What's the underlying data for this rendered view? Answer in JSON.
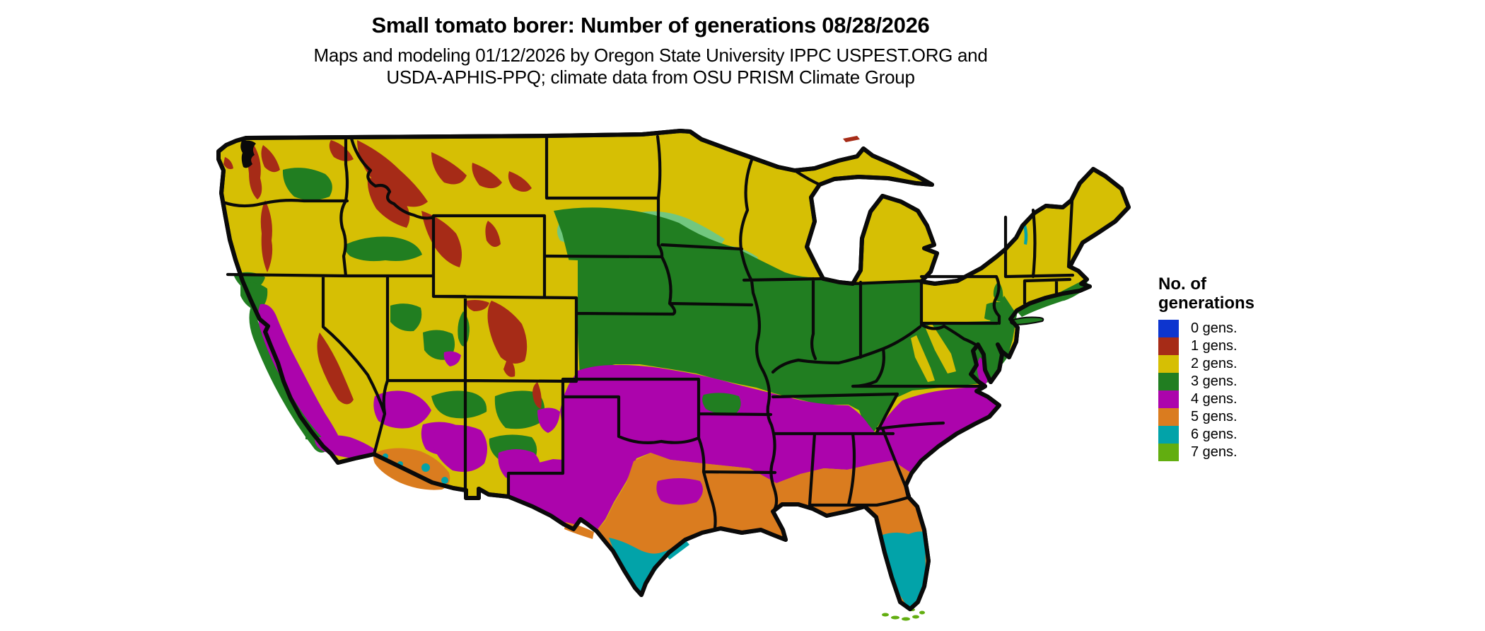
{
  "header": {
    "title": "Small tomato borer: Number of generations 08/28/2026",
    "subtitle_line1": "Maps and modeling 01/12/2026 by Oregon State University IPPC USPEST.ORG and",
    "subtitle_line2": "USDA-APHIS-PPQ; climate data from OSU PRISM Climate Group"
  },
  "legend": {
    "title_line1": "No. of",
    "title_line2": "generations",
    "items": [
      {
        "label": "0 gens.",
        "palette_key": "gens0"
      },
      {
        "label": "1 gens.",
        "palette_key": "gens1"
      },
      {
        "label": "2 gens.",
        "palette_key": "gens2"
      },
      {
        "label": "3 gens.",
        "palette_key": "gens3"
      },
      {
        "label": "4 gens.",
        "palette_key": "gens4"
      },
      {
        "label": "5 gens.",
        "palette_key": "gens5"
      },
      {
        "label": "6 gens.",
        "palette_key": "gens6"
      },
      {
        "label": "7 gens.",
        "palette_key": "gens7"
      }
    ]
  },
  "palette": {
    "gens0": "#0d35cf",
    "gens1": "#a62b17",
    "gens2": "#d6bf04",
    "gens3": "#217e21",
    "gens3_light": "#72c77f",
    "gens4": "#ac04ac",
    "gens5": "#da7c1f",
    "gens6": "#02a3a9",
    "gens7": "#62ae10",
    "border": "#0a0a0a",
    "water": "#ffffff"
  },
  "map": {
    "region": "Conterminous United States",
    "boundaries": "state borders",
    "value_classes": [
      "0 gens.",
      "1 gens.",
      "2 gens.",
      "3 gens.",
      "4 gens.",
      "5 gens.",
      "6 gens.",
      "7 gens."
    ]
  }
}
